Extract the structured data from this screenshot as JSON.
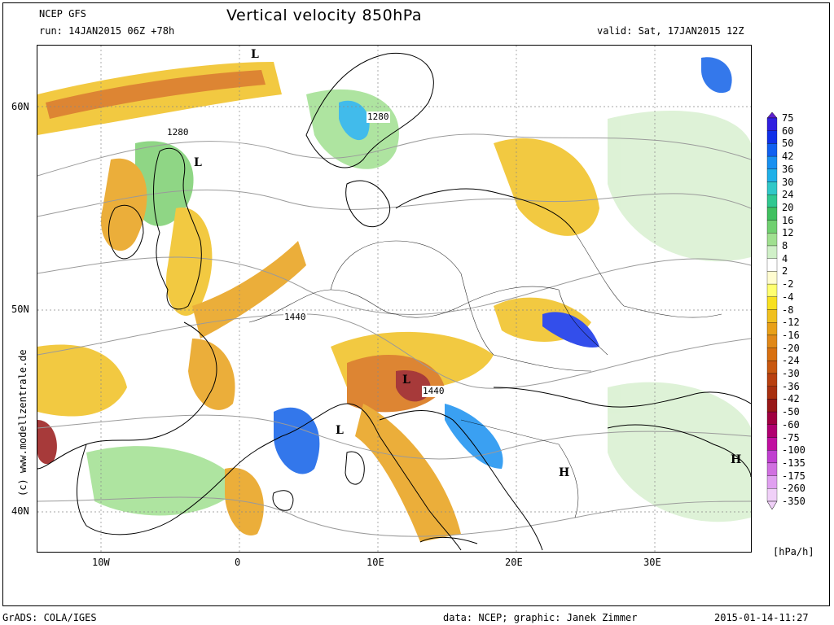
{
  "header": {
    "model": "NCEP GFS",
    "run": "run: 14JAN2015 06Z +78h",
    "title": "Vertical velocity 850hPa",
    "valid": "valid: Sat, 17JAN2015 12Z"
  },
  "map": {
    "lat_labels": [
      "60N",
      "50N",
      "40N"
    ],
    "lon_labels": [
      "10W",
      "0",
      "10E",
      "20E",
      "30E"
    ],
    "contour_labels": [
      "1280",
      "1280",
      "1440",
      "1440"
    ],
    "pressure_centers": [
      "L",
      "L",
      "L",
      "L",
      "H",
      "H"
    ],
    "watermark": "(c)  www.modellzentrale.de",
    "colors": {
      "ocean_contour": "#9a9a9a",
      "coastline": "#000000",
      "strong_sink": "#c87010",
      "moderate_sink": "#f0c020",
      "weak_sink": "#fff9c0",
      "weak_lift": "#d8f0d0",
      "moderate_lift": "#7cd070",
      "strong_lift": "#1060e8"
    }
  },
  "legend": {
    "units": "[hPa/h]",
    "items": [
      {
        "label": "75",
        "color": "#6020d0"
      },
      {
        "label": "60",
        "color": "#3020e0"
      },
      {
        "label": "50",
        "color": "#1030e8"
      },
      {
        "label": "42",
        "color": "#1060f0"
      },
      {
        "label": "36",
        "color": "#1890f0"
      },
      {
        "label": "30",
        "color": "#20b0e8"
      },
      {
        "label": "24",
        "color": "#30c8c8"
      },
      {
        "label": "20",
        "color": "#30c890"
      },
      {
        "label": "16",
        "color": "#40c060"
      },
      {
        "label": "12",
        "color": "#70d070"
      },
      {
        "label": "8",
        "color": "#a0e090"
      },
      {
        "label": "4",
        "color": "#d0f0c8"
      },
      {
        "label": "2",
        "color": "#ffffff"
      },
      {
        "label": "-2",
        "color": "#fffcd0"
      },
      {
        "label": "-4",
        "color": "#ffff70"
      },
      {
        "label": "-8",
        "color": "#f8e020"
      },
      {
        "label": "-12",
        "color": "#f0c020"
      },
      {
        "label": "-16",
        "color": "#e8a018"
      },
      {
        "label": "-20",
        "color": "#e08818"
      },
      {
        "label": "-24",
        "color": "#d87010"
      },
      {
        "label": "-30",
        "color": "#c85810"
      },
      {
        "label": "-36",
        "color": "#b84010"
      },
      {
        "label": "-42",
        "color": "#a83010"
      },
      {
        "label": "-50",
        "color": "#981818"
      },
      {
        "label": "-60",
        "color": "#a00040"
      },
      {
        "label": "-75",
        "color": "#b00070"
      },
      {
        "label": "-100",
        "color": "#c010a0"
      },
      {
        "label": "-135",
        "color": "#c040d0"
      },
      {
        "label": "-175",
        "color": "#d070e0"
      },
      {
        "label": "-260",
        "color": "#e0a0f0"
      },
      {
        "label": "-350",
        "color": "#f0d0f8"
      }
    ]
  },
  "footer": {
    "software": "GrADS: COLA/IGES",
    "credit": "data: NCEP; graphic: Janek Zimmer",
    "timestamp": "2015-01-14-11:27"
  }
}
